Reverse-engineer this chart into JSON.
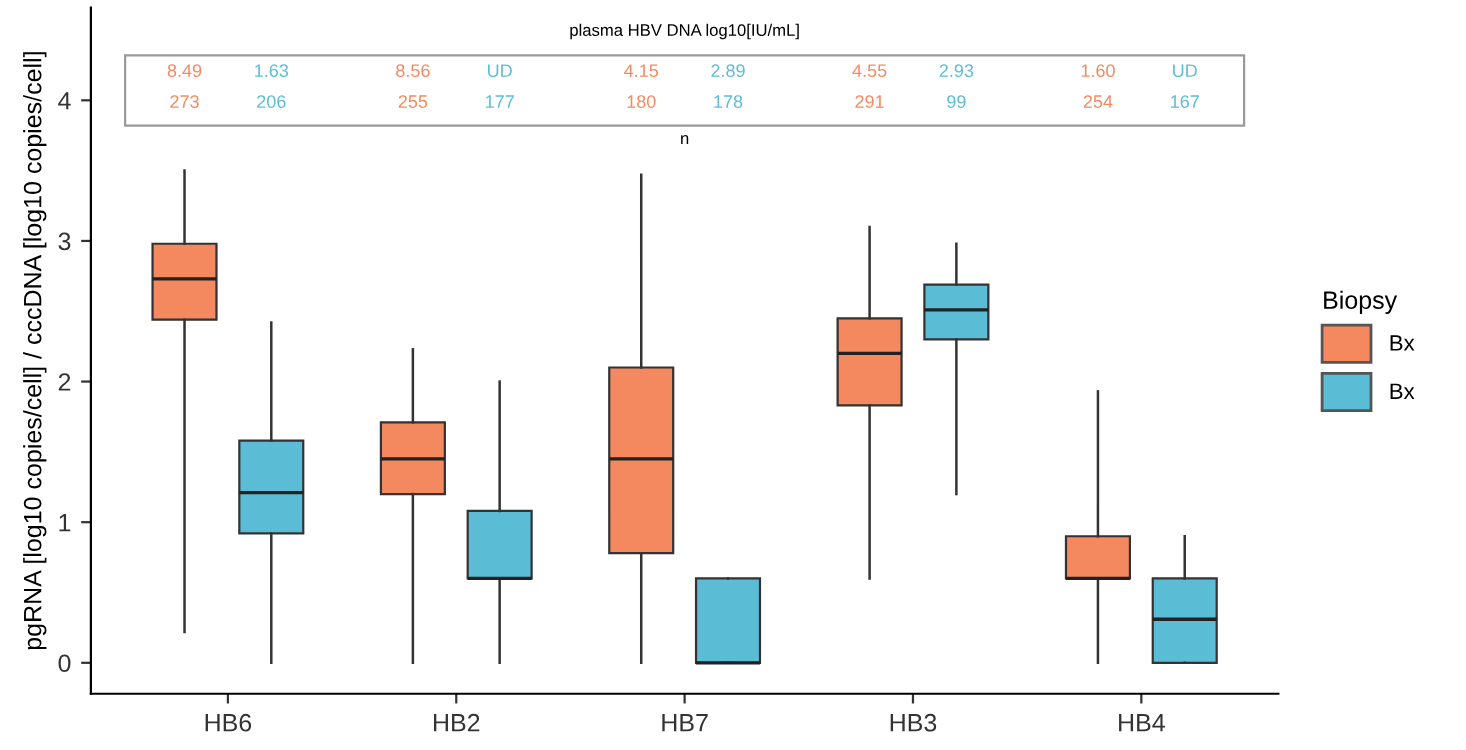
{
  "chart_data": {
    "type": "box",
    "ylabel": "pgRNA [log10 copies/cell] / cccDNA [log10 copies/cell]",
    "legend_title": "Biopsy",
    "legend": "right",
    "categories": [
      "HB6",
      "HB2",
      "HB7",
      "HB3",
      "HB4"
    ],
    "ylim": [
      -0.22,
      4.66
    ],
    "yticks": [
      0,
      1,
      2,
      3,
      4
    ],
    "grid": false,
    "series": [
      {
        "name": "Bx",
        "color": "#f4895f",
        "boxes": [
          {
            "low": 0.22,
            "q1": 2.44,
            "median": 2.73,
            "q3": 2.98,
            "high": 3.5
          },
          {
            "low": 0,
            "q1": 1.2,
            "median": 1.45,
            "q3": 1.71,
            "high": 2.23
          },
          {
            "low": 0,
            "q1": 0.78,
            "median": 1.45,
            "q3": 2.1,
            "high": 3.47
          },
          {
            "low": 0.6,
            "q1": 1.83,
            "median": 2.2,
            "q3": 2.45,
            "high": 3.1
          },
          {
            "low": 0,
            "q1": 0.6,
            "median": 0.6,
            "q3": 0.9,
            "high": 1.93
          }
        ]
      },
      {
        "name": "Bx",
        "color": "#5bbcd6",
        "boxes": [
          {
            "low": 0,
            "q1": 0.92,
            "median": 1.21,
            "q3": 1.58,
            "high": 2.42
          },
          {
            "low": 0,
            "q1": 0.6,
            "median": 0.6,
            "q3": 1.08,
            "high": 2.0
          },
          {
            "low": 0,
            "q1": 0,
            "median": 0,
            "q3": 0.6,
            "high": 0.6
          },
          {
            "low": 1.2,
            "q1": 2.3,
            "median": 2.51,
            "q3": 2.69,
            "high": 2.98
          },
          {
            "low": 0,
            "q1": 0,
            "median": 0.31,
            "q3": 0.6,
            "high": 0.9
          }
        ]
      }
    ],
    "annotations": [
      "plasma HBV DNA log10[IU/mL]",
      "8.49",
      "1.63",
      "8.56",
      "UD",
      "4.15",
      "2.89",
      "4.55",
      "2.93",
      "1.60",
      "UD",
      "273",
      "206",
      "255",
      "177",
      "180",
      "178",
      "291",
      "99",
      "254",
      "167",
      "n"
    ]
  }
}
